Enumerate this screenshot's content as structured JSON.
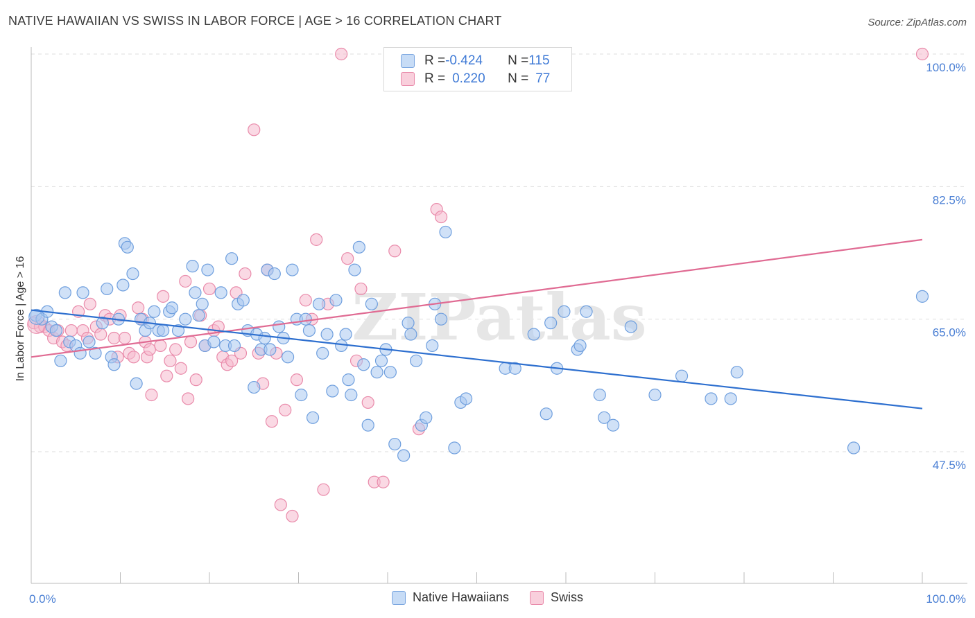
{
  "header": {
    "title": "NATIVE HAWAIIAN VS SWISS IN LABOR FORCE | AGE > 16 CORRELATION CHART",
    "source": "Source: ZipAtlas.com"
  },
  "watermark": "ZIPatlas",
  "legend": {
    "rows": [
      {
        "r_label": "R = ",
        "r_value": "-0.424",
        "n_label": "N = ",
        "n_value": "115"
      },
      {
        "r_label": "R = ",
        "r_value": "0.220",
        "n_label": "N = ",
        "n_value": "77"
      }
    ]
  },
  "bottom_legend": {
    "items": [
      {
        "label": "Native Hawaiians"
      },
      {
        "label": "Swiss"
      }
    ]
  },
  "colors": {
    "blue_fill": "#a9c8f0",
    "blue_stroke": "#6f9fde",
    "blue_line": "#2d6fcf",
    "pink_fill": "#f5b9cd",
    "pink_stroke": "#e98aaa",
    "pink_line": "#e06b93",
    "tick_text": "#4a7fd4",
    "grid": "#dddddd"
  },
  "chart_data": {
    "type": "scatter",
    "title": "NATIVE HAWAIIAN VS SWISS IN LABOR FORCE | AGE > 16 CORRELATION CHART",
    "xlabel": "",
    "ylabel": "In Labor Force | Age > 16",
    "xlim": [
      0,
      100
    ],
    "ylim": [
      30,
      102
    ],
    "x_tick_labels": [
      {
        "value": 0,
        "label": "0.0%"
      },
      {
        "value": 100,
        "label": "100.0%"
      }
    ],
    "y_tick_labels": [
      {
        "value": 100,
        "label": "100.0%"
      },
      {
        "value": 82.5,
        "label": "82.5%"
      },
      {
        "value": 65,
        "label": "65.0%"
      },
      {
        "value": 47.5,
        "label": "47.5%"
      }
    ],
    "series": [
      {
        "name": "Native Hawaiians",
        "color": "#a9c8f0",
        "trend": {
          "x": [
            0,
            100
          ],
          "y": [
            66.2,
            53.2
          ]
        },
        "points": [
          [
            0.5,
            65.5
          ],
          [
            1.2,
            65.0
          ],
          [
            1.8,
            66.0
          ],
          [
            2.3,
            64.0
          ],
          [
            2.8,
            63.5
          ],
          [
            3.3,
            59.5
          ],
          [
            3.8,
            68.5
          ],
          [
            4.3,
            62.0
          ],
          [
            5.0,
            61.5
          ],
          [
            5.5,
            60.5
          ],
          [
            5.8,
            68.5
          ],
          [
            6.5,
            62.0
          ],
          [
            7.2,
            60.5
          ],
          [
            8.0,
            64.5
          ],
          [
            8.5,
            69.0
          ],
          [
            9.0,
            60.0
          ],
          [
            9.3,
            59.0
          ],
          [
            9.8,
            65.0
          ],
          [
            10.3,
            69.5
          ],
          [
            10.5,
            75.0
          ],
          [
            10.8,
            74.5
          ],
          [
            11.4,
            71.0
          ],
          [
            11.8,
            56.5
          ],
          [
            12.3,
            65.0
          ],
          [
            12.8,
            63.5
          ],
          [
            13.3,
            64.5
          ],
          [
            13.8,
            66.0
          ],
          [
            14.3,
            63.5
          ],
          [
            14.8,
            63.5
          ],
          [
            15.5,
            66.0
          ],
          [
            15.8,
            66.5
          ],
          [
            16.5,
            63.5
          ],
          [
            17.3,
            65.0
          ],
          [
            18.1,
            72.0
          ],
          [
            18.4,
            68.5
          ],
          [
            18.8,
            65.5
          ],
          [
            19.2,
            67.0
          ],
          [
            19.5,
            61.5
          ],
          [
            19.8,
            71.5
          ],
          [
            20.5,
            62.0
          ],
          [
            21.3,
            68.5
          ],
          [
            21.8,
            61.5
          ],
          [
            22.5,
            73.0
          ],
          [
            22.8,
            61.5
          ],
          [
            23.2,
            67.0
          ],
          [
            23.8,
            67.5
          ],
          [
            24.3,
            63.5
          ],
          [
            25.0,
            56.0
          ],
          [
            25.3,
            63.0
          ],
          [
            25.8,
            61.0
          ],
          [
            26.2,
            62.5
          ],
          [
            26.5,
            71.5
          ],
          [
            26.8,
            61.0
          ],
          [
            27.3,
            71.0
          ],
          [
            27.8,
            64.0
          ],
          [
            28.3,
            62.5
          ],
          [
            28.8,
            60.0
          ],
          [
            29.3,
            71.5
          ],
          [
            29.8,
            65.0
          ],
          [
            30.3,
            55.0
          ],
          [
            30.8,
            65.0
          ],
          [
            31.2,
            63.5
          ],
          [
            31.6,
            52.0
          ],
          [
            32.3,
            67.0
          ],
          [
            32.7,
            60.5
          ],
          [
            33.2,
            63.0
          ],
          [
            33.8,
            55.5
          ],
          [
            34.2,
            67.5
          ],
          [
            34.8,
            61.5
          ],
          [
            35.3,
            63.0
          ],
          [
            35.6,
            57.0
          ],
          [
            35.9,
            55.0
          ],
          [
            36.3,
            71.5
          ],
          [
            36.8,
            74.5
          ],
          [
            37.3,
            59.0
          ],
          [
            37.8,
            51.0
          ],
          [
            38.2,
            67.0
          ],
          [
            38.8,
            58.0
          ],
          [
            39.3,
            59.5
          ],
          [
            39.8,
            61.0
          ],
          [
            40.3,
            58.0
          ],
          [
            40.8,
            48.5
          ],
          [
            41.8,
            47.0
          ],
          [
            42.3,
            64.5
          ],
          [
            42.6,
            63.0
          ],
          [
            43.2,
            59.5
          ],
          [
            43.8,
            51.0
          ],
          [
            44.3,
            52.0
          ],
          [
            45.0,
            61.5
          ],
          [
            45.3,
            67.0
          ],
          [
            46.0,
            65.0
          ],
          [
            46.5,
            76.5
          ],
          [
            47.5,
            48.0
          ],
          [
            48.2,
            54.0
          ],
          [
            48.8,
            54.5
          ],
          [
            53.2,
            58.5
          ],
          [
            54.3,
            58.5
          ],
          [
            56.4,
            63.0
          ],
          [
            57.8,
            52.5
          ],
          [
            58.3,
            64.5
          ],
          [
            59.0,
            58.5
          ],
          [
            59.8,
            66.0
          ],
          [
            61.3,
            61.0
          ],
          [
            61.6,
            61.5
          ],
          [
            62.3,
            66.0
          ],
          [
            63.8,
            55.0
          ],
          [
            64.3,
            52.0
          ],
          [
            65.3,
            51.0
          ],
          [
            67.3,
            64.0
          ],
          [
            70.0,
            55.0
          ],
          [
            73.0,
            57.5
          ],
          [
            76.3,
            54.5
          ],
          [
            78.5,
            54.5
          ],
          [
            79.2,
            58.0
          ],
          [
            92.3,
            48.0
          ],
          [
            100.0,
            68.0
          ]
        ]
      },
      {
        "name": "Swiss",
        "color": "#f5b9cd",
        "trend": {
          "x": [
            0,
            100
          ],
          "y": [
            60.0,
            75.5
          ]
        },
        "points": [
          [
            0.3,
            64.5
          ],
          [
            1.0,
            64.0
          ],
          [
            1.5,
            64.0
          ],
          [
            2.0,
            63.5
          ],
          [
            2.5,
            62.5
          ],
          [
            3.0,
            63.5
          ],
          [
            3.5,
            62.0
          ],
          [
            4.0,
            61.5
          ],
          [
            4.5,
            63.5
          ],
          [
            5.3,
            66.0
          ],
          [
            5.8,
            63.5
          ],
          [
            6.3,
            62.5
          ],
          [
            6.6,
            67.0
          ],
          [
            7.3,
            64.0
          ],
          [
            7.8,
            63.0
          ],
          [
            8.3,
            65.5
          ],
          [
            8.8,
            65.0
          ],
          [
            9.3,
            62.5
          ],
          [
            9.7,
            60.0
          ],
          [
            10.0,
            65.5
          ],
          [
            10.5,
            62.5
          ],
          [
            11.0,
            60.5
          ],
          [
            11.5,
            60.0
          ],
          [
            12.0,
            66.5
          ],
          [
            12.5,
            65.0
          ],
          [
            12.8,
            62.0
          ],
          [
            13.0,
            60.0
          ],
          [
            13.3,
            61.0
          ],
          [
            13.5,
            55.0
          ],
          [
            14.5,
            61.5
          ],
          [
            14.8,
            68.0
          ],
          [
            15.2,
            57.5
          ],
          [
            15.6,
            59.5
          ],
          [
            16.2,
            61.0
          ],
          [
            16.8,
            58.5
          ],
          [
            17.3,
            70.0
          ],
          [
            17.6,
            54.5
          ],
          [
            17.9,
            62.0
          ],
          [
            18.5,
            57.0
          ],
          [
            19.0,
            65.5
          ],
          [
            19.5,
            61.5
          ],
          [
            20.0,
            69.0
          ],
          [
            20.5,
            63.5
          ],
          [
            21.0,
            64.0
          ],
          [
            21.5,
            60.0
          ],
          [
            22.0,
            59.0
          ],
          [
            22.5,
            59.5
          ],
          [
            23.0,
            68.5
          ],
          [
            23.5,
            60.5
          ],
          [
            24.0,
            71.0
          ],
          [
            25.0,
            90.0
          ],
          [
            25.5,
            60.5
          ],
          [
            26.0,
            56.5
          ],
          [
            26.5,
            71.5
          ],
          [
            27.0,
            51.5
          ],
          [
            27.5,
            60.5
          ],
          [
            28.0,
            40.5
          ],
          [
            28.5,
            53.0
          ],
          [
            29.3,
            39.0
          ],
          [
            29.8,
            57.0
          ],
          [
            30.8,
            67.5
          ],
          [
            31.5,
            65.0
          ],
          [
            32.0,
            75.5
          ],
          [
            32.8,
            42.5
          ],
          [
            33.3,
            67.0
          ],
          [
            34.8,
            100.0
          ],
          [
            35.5,
            73.0
          ],
          [
            36.5,
            59.5
          ],
          [
            37.0,
            69.0
          ],
          [
            37.8,
            54.0
          ],
          [
            38.5,
            43.5
          ],
          [
            39.5,
            43.5
          ],
          [
            40.8,
            74.0
          ],
          [
            43.5,
            50.5
          ],
          [
            45.5,
            79.5
          ],
          [
            46.0,
            78.5
          ],
          [
            100.0,
            100.0
          ]
        ]
      }
    ]
  }
}
